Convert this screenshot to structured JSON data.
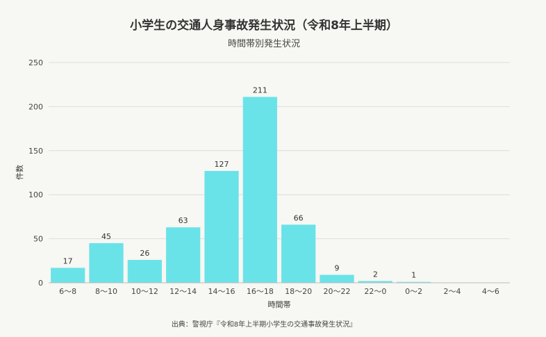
{
  "chart_data": {
    "type": "bar",
    "title": "小学生の交通人身事故発生状況（令和8年上半期）",
    "subtitle": "時間帯別発生状況",
    "xlabel": "時間帯",
    "ylabel": "件数",
    "categories": [
      "6〜8",
      "8〜10",
      "10〜12",
      "12〜14",
      "14〜16",
      "16〜18",
      "18〜20",
      "20〜22",
      "22〜0",
      "0〜2",
      "2〜4",
      "4〜6"
    ],
    "values": [
      17,
      45,
      26,
      63,
      127,
      211,
      66,
      9,
      2,
      1,
      0,
      0
    ],
    "data_labels": [
      "17",
      "45",
      "26",
      "63",
      "127",
      "211",
      "66",
      "9",
      "2",
      "1",
      "",
      ""
    ],
    "ylim": [
      0,
      250
    ],
    "yticks": [
      0,
      50,
      100,
      150,
      200,
      250
    ],
    "grid": true,
    "bar_color": "#6ae3e8",
    "source": "出典：警視庁『令和8年上半期小学生の交通事故発生状況』"
  }
}
